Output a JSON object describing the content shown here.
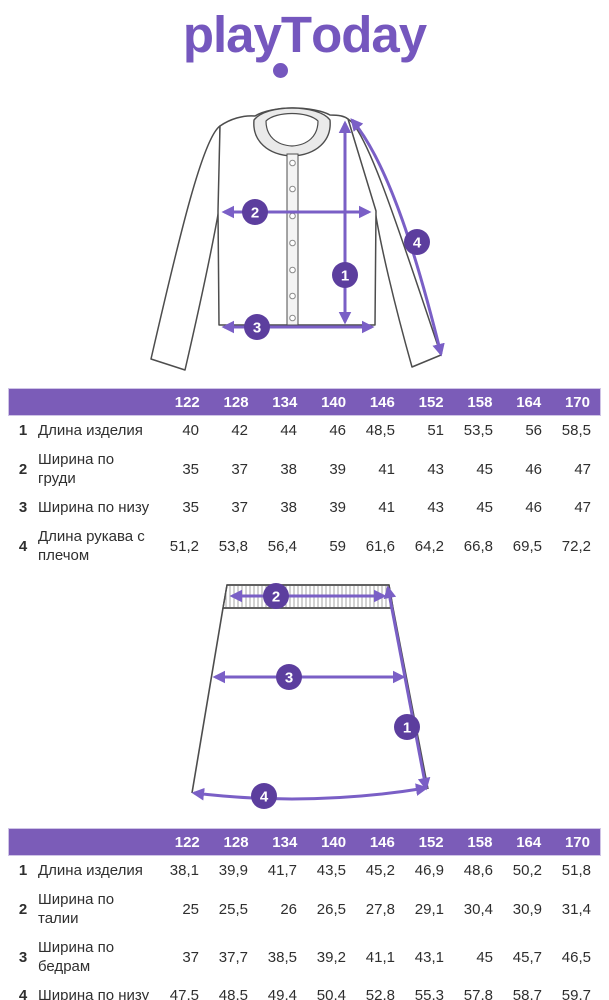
{
  "colors": {
    "accent": "#7557be",
    "header_bg": "#7b5cb8",
    "header_text": "#ffffff",
    "arrow": "#7a5fc6",
    "circle": "#5c3e9e",
    "outline": "#4d4d4d",
    "collar_fill": "#eaeaea",
    "text": "#2f2f2f"
  },
  "brand": {
    "logo_play": "play",
    "logo_t": "T",
    "logo_oday": "oday"
  },
  "diagrams": {
    "jacket": {
      "labels": [
        "1",
        "2",
        "3",
        "4"
      ]
    },
    "skirt": {
      "labels": [
        "1",
        "2",
        "3",
        "4"
      ]
    }
  },
  "tables": [
    {
      "name": "jacket",
      "sizes": [
        "122",
        "128",
        "134",
        "140",
        "146",
        "152",
        "158",
        "164",
        "170"
      ],
      "rows": [
        {
          "num": "1",
          "label": "Длина изделия",
          "values": [
            "40",
            "42",
            "44",
            "46",
            "48,5",
            "51",
            "53,5",
            "56",
            "58,5"
          ]
        },
        {
          "num": "2",
          "label": "Ширина по груди",
          "values": [
            "35",
            "37",
            "38",
            "39",
            "41",
            "43",
            "45",
            "46",
            "47"
          ]
        },
        {
          "num": "3",
          "label": "Ширина по низу",
          "values": [
            "35",
            "37",
            "38",
            "39",
            "41",
            "43",
            "45",
            "46",
            "47"
          ]
        },
        {
          "num": "4",
          "label": "Длина рукава с плечом",
          "values": [
            "51,2",
            "53,8",
            "56,4",
            "59",
            "61,6",
            "64,2",
            "66,8",
            "69,5",
            "72,2"
          ]
        }
      ]
    },
    {
      "name": "skirt",
      "sizes": [
        "122",
        "128",
        "134",
        "140",
        "146",
        "152",
        "158",
        "164",
        "170"
      ],
      "rows": [
        {
          "num": "1",
          "label": "Длина изделия",
          "values": [
            "38,1",
            "39,9",
            "41,7",
            "43,5",
            "45,2",
            "46,9",
            "48,6",
            "50,2",
            "51,8"
          ]
        },
        {
          "num": "2",
          "label": "Ширина по талии",
          "values": [
            "25",
            "25,5",
            "26",
            "26,5",
            "27,8",
            "29,1",
            "30,4",
            "30,9",
            "31,4"
          ]
        },
        {
          "num": "3",
          "label": "Ширина по бедрам",
          "values": [
            "37",
            "37,7",
            "38,5",
            "39,2",
            "41,1",
            "43,1",
            "45",
            "45,7",
            "46,5"
          ]
        },
        {
          "num": "4",
          "label": "Ширина по низу",
          "values": [
            "47,5",
            "48,5",
            "49,4",
            "50,4",
            "52,8",
            "55,3",
            "57,8",
            "58,7",
            "59,7"
          ]
        }
      ]
    }
  ]
}
